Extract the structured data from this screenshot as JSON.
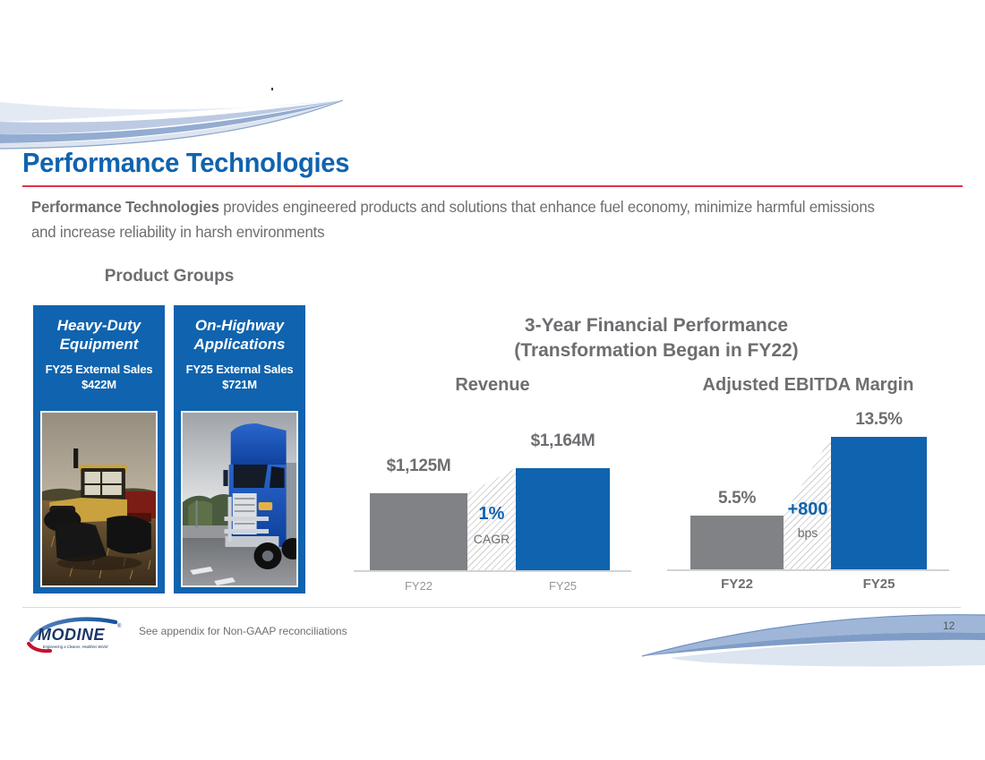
{
  "slide": {
    "title": "Performance Technologies",
    "stray_mark": "."
  },
  "intro": {
    "lead_bold": "Performance Technologies",
    "line1_rest": " provides engineered products and solutions that enhance fuel economy, minimize harmful emissions",
    "line2": "and increase reliability in harsh environments"
  },
  "product_groups": {
    "heading": "Product Groups",
    "cards": [
      {
        "title_line1": "Heavy-Duty",
        "title_line2": "Equipment",
        "sales_label": "FY25 External Sales",
        "sales_value": "$422M",
        "photo": "tracked-tractor-in-harvested-field"
      },
      {
        "title_line1": "On-Highway",
        "title_line2": "Applications",
        "sales_label": "FY25 External Sales",
        "sales_value": "$721M",
        "photo": "blue-semi-truck-on-highway"
      }
    ]
  },
  "financials": {
    "title_line1": "3-Year Financial Performance",
    "title_line2": "(Transformation Began in FY22)"
  },
  "chart_data": [
    {
      "type": "bar",
      "title": "Revenue",
      "categories": [
        "FY22",
        "FY25"
      ],
      "values": [
        1125,
        1164
      ],
      "value_labels": [
        "$1,125M",
        "$1,164M"
      ],
      "annotation": {
        "value": "1%",
        "label": "CAGR"
      },
      "bar_colors": [
        "#808285",
        "#1063AE"
      ],
      "xlabel": "",
      "ylabel": "",
      "grid": false,
      "legend": "none"
    },
    {
      "type": "bar",
      "title": "Adjusted EBITDA Margin",
      "categories": [
        "FY22",
        "FY25"
      ],
      "values": [
        5.5,
        13.5
      ],
      "value_labels": [
        "5.5%",
        "13.5%"
      ],
      "annotation": {
        "value": "+800",
        "label": "bps"
      },
      "bar_colors": [
        "#808285",
        "#1063AE"
      ],
      "xlabel": "",
      "ylabel": "",
      "grid": false,
      "legend": "none"
    }
  ],
  "footer": {
    "logo_text": "MODINE",
    "logo_mark": "®",
    "logo_tagline": "Engineering a Cleaner, Healthier World",
    "note": "See appendix for Non-GAAP reconciliations",
    "page_number": "12"
  },
  "colors": {
    "accent_blue": "#1063AE",
    "bar_gray": "#808285",
    "text_gray": "#6D6E71",
    "muted_label_gray": "#939598",
    "rule_red": "#E2334A",
    "axis_gray": "#D1D3D4",
    "logo_navy": "#1B3669",
    "logo_red": "#C41230"
  }
}
